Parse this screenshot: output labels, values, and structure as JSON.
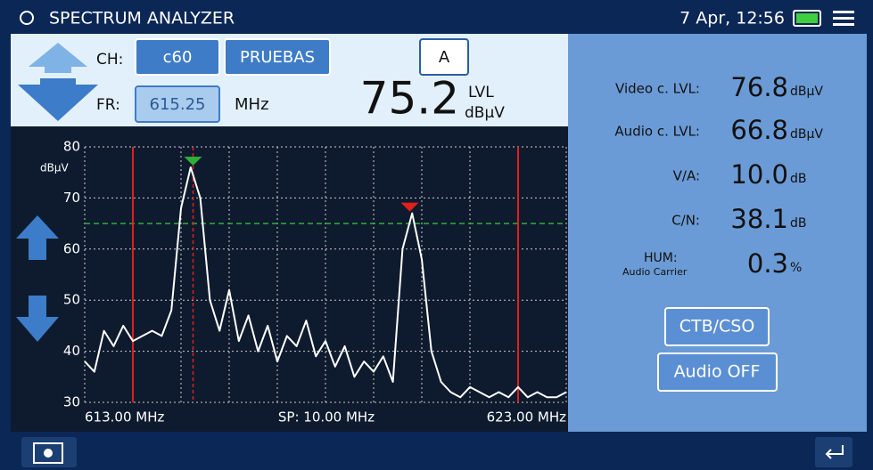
{
  "header": {
    "title": "SPECTRUM ANALYZER",
    "datetime": "7 Apr, 12:56"
  },
  "controls": {
    "ch_label": "CH:",
    "channel": "c60",
    "plan": "PRUEBAS",
    "mode": "A",
    "fr_label": "FR:",
    "frequency": "615.25",
    "frequency_unit": "MHz",
    "level": "75.2",
    "level_label": "LVL",
    "level_unit": "dBµV"
  },
  "spectrum": {
    "ylim": [
      30,
      80
    ],
    "yticks": [
      30,
      40,
      50,
      60,
      70,
      80
    ],
    "y_unit": "dBµV",
    "xlim": [
      613,
      623
    ],
    "xticks": [
      613,
      614,
      615,
      616,
      617,
      618,
      619,
      620,
      621,
      622,
      623
    ],
    "x_start_label": "613.00 MHz",
    "span_label": "SP: 10.00 MHz",
    "x_end_label": "623.00 MHz",
    "reference_level": 65,
    "limit_lines": [
      614,
      622
    ],
    "carrier_line": 615.25,
    "markers": [
      {
        "x": 615.25,
        "y": 76,
        "color": "#2fae3a"
      },
      {
        "x": 619.75,
        "y": 67,
        "color": "#e0201a"
      }
    ],
    "trace_x": [
      613.0,
      613.2,
      613.4,
      613.6,
      613.8,
      614.0,
      614.2,
      614.4,
      614.6,
      614.8,
      615.0,
      615.2,
      615.4,
      615.6,
      615.8,
      616.0,
      616.2,
      616.4,
      616.6,
      616.8,
      617.0,
      617.2,
      617.4,
      617.6,
      617.8,
      618.0,
      618.2,
      618.4,
      618.6,
      618.8,
      619.0,
      619.2,
      619.4,
      619.6,
      619.8,
      620.0,
      620.2,
      620.4,
      620.6,
      620.8,
      621.0,
      621.2,
      621.4,
      621.6,
      621.8,
      622.0,
      622.2,
      622.4,
      622.6,
      622.8,
      623.0
    ],
    "trace": [
      38,
      36,
      44,
      41,
      45,
      42,
      43,
      44,
      43,
      48,
      68,
      76,
      70,
      50,
      44,
      52,
      42,
      47,
      40,
      45,
      38,
      43,
      41,
      46,
      39,
      42,
      37,
      41,
      35,
      38,
      36,
      39,
      34,
      60,
      67,
      58,
      40,
      34,
      32,
      31,
      33,
      32,
      31,
      32,
      31,
      33,
      31,
      32,
      31,
      31,
      32
    ]
  },
  "measurements": [
    {
      "label": "Video c. LVL:",
      "value": "76.8",
      "unit": "dBµV"
    },
    {
      "label": "Audio c. LVL:",
      "value": "66.8",
      "unit": "dBµV"
    },
    {
      "label": "V/A:",
      "value": "10.0",
      "unit": "dB"
    },
    {
      "label": "C/N:",
      "value": "38.1",
      "unit": "dB"
    },
    {
      "label": "HUM:",
      "sublabel": "Audio Carrier",
      "value": "0.3",
      "unit": "%"
    }
  ],
  "buttons": [
    "CTB/CSO",
    "Audio OFF"
  ]
}
